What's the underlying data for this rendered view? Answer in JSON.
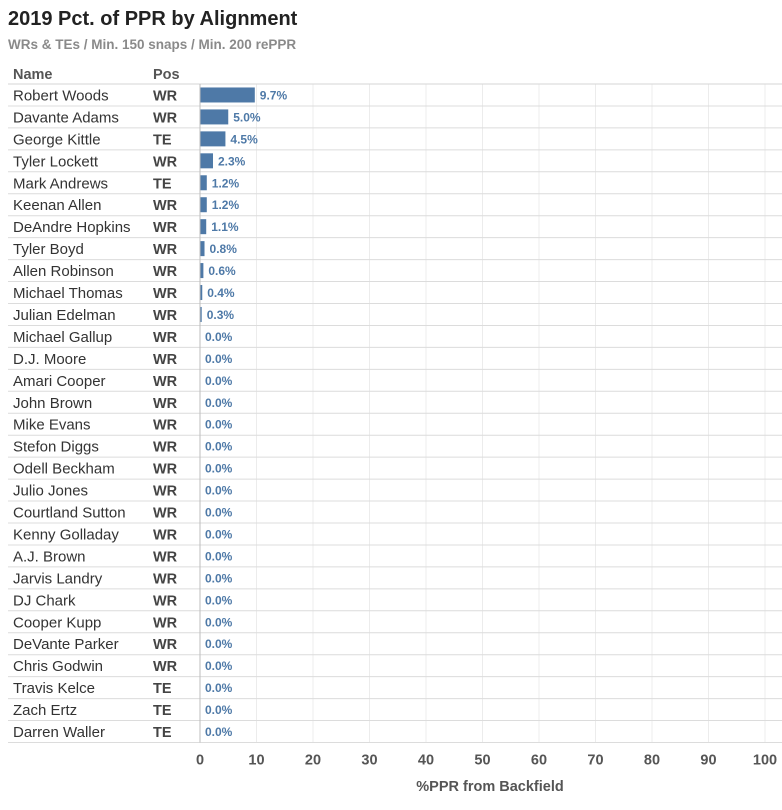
{
  "chart_data": {
    "type": "bar",
    "title": "2019 Pct. of PPR by Alignment",
    "subtitle": "WRs & TEs / Min. 150 snaps / Min. 200 rePPR",
    "columns": {
      "name_header": "Name",
      "pos_header": "Pos"
    },
    "xlabel": "%PPR from Backfield",
    "xlim": [
      0,
      100
    ],
    "xticks": [
      0,
      10,
      20,
      30,
      40,
      50,
      60,
      70,
      80,
      90,
      100
    ],
    "grid": true,
    "bar_color": "#4e79a7",
    "label_color": "#4e79a7",
    "rows": [
      {
        "name": "Robert Woods",
        "pos": "WR",
        "value": 9.7,
        "label": "9.7%"
      },
      {
        "name": "Davante Adams",
        "pos": "WR",
        "value": 5.0,
        "label": "5.0%"
      },
      {
        "name": "George Kittle",
        "pos": "TE",
        "value": 4.5,
        "label": "4.5%"
      },
      {
        "name": "Tyler Lockett",
        "pos": "WR",
        "value": 2.3,
        "label": "2.3%"
      },
      {
        "name": "Mark Andrews",
        "pos": "TE",
        "value": 1.2,
        "label": "1.2%"
      },
      {
        "name": "Keenan Allen",
        "pos": "WR",
        "value": 1.2,
        "label": "1.2%"
      },
      {
        "name": "DeAndre Hopkins",
        "pos": "WR",
        "value": 1.1,
        "label": "1.1%"
      },
      {
        "name": "Tyler Boyd",
        "pos": "WR",
        "value": 0.8,
        "label": "0.8%"
      },
      {
        "name": "Allen Robinson",
        "pos": "WR",
        "value": 0.6,
        "label": "0.6%"
      },
      {
        "name": "Michael Thomas",
        "pos": "WR",
        "value": 0.4,
        "label": "0.4%"
      },
      {
        "name": "Julian Edelman",
        "pos": "WR",
        "value": 0.3,
        "label": "0.3%"
      },
      {
        "name": "Michael Gallup",
        "pos": "WR",
        "value": 0.0,
        "label": "0.0%"
      },
      {
        "name": "D.J. Moore",
        "pos": "WR",
        "value": 0.0,
        "label": "0.0%"
      },
      {
        "name": "Amari Cooper",
        "pos": "WR",
        "value": 0.0,
        "label": "0.0%"
      },
      {
        "name": "John Brown",
        "pos": "WR",
        "value": 0.0,
        "label": "0.0%"
      },
      {
        "name": "Mike Evans",
        "pos": "WR",
        "value": 0.0,
        "label": "0.0%"
      },
      {
        "name": "Stefon Diggs",
        "pos": "WR",
        "value": 0.0,
        "label": "0.0%"
      },
      {
        "name": "Odell Beckham",
        "pos": "WR",
        "value": 0.0,
        "label": "0.0%"
      },
      {
        "name": "Julio Jones",
        "pos": "WR",
        "value": 0.0,
        "label": "0.0%"
      },
      {
        "name": "Courtland Sutton",
        "pos": "WR",
        "value": 0.0,
        "label": "0.0%"
      },
      {
        "name": "Kenny Golladay",
        "pos": "WR",
        "value": 0.0,
        "label": "0.0%"
      },
      {
        "name": "A.J. Brown",
        "pos": "WR",
        "value": 0.0,
        "label": "0.0%"
      },
      {
        "name": "Jarvis Landry",
        "pos": "WR",
        "value": 0.0,
        "label": "0.0%"
      },
      {
        "name": "DJ Chark",
        "pos": "WR",
        "value": 0.0,
        "label": "0.0%"
      },
      {
        "name": "Cooper Kupp",
        "pos": "WR",
        "value": 0.0,
        "label": "0.0%"
      },
      {
        "name": "DeVante Parker",
        "pos": "WR",
        "value": 0.0,
        "label": "0.0%"
      },
      {
        "name": "Chris Godwin",
        "pos": "WR",
        "value": 0.0,
        "label": "0.0%"
      },
      {
        "name": "Travis Kelce",
        "pos": "TE",
        "value": 0.0,
        "label": "0.0%"
      },
      {
        "name": "Zach Ertz",
        "pos": "TE",
        "value": 0.0,
        "label": "0.0%"
      },
      {
        "name": "Darren Waller",
        "pos": "TE",
        "value": 0.0,
        "label": "0.0%"
      }
    ]
  }
}
